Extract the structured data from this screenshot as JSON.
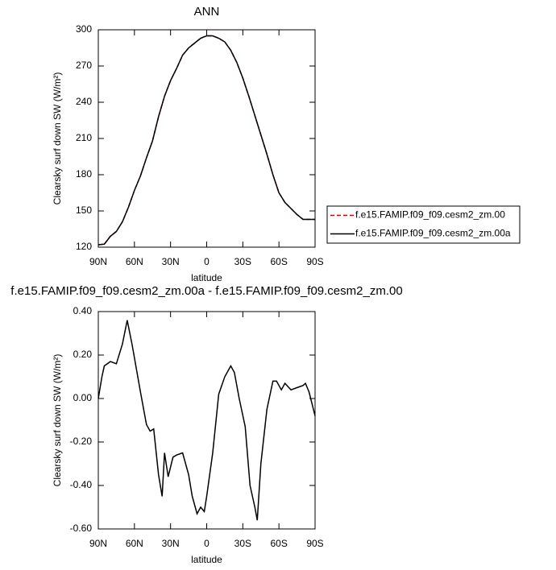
{
  "chart_data": [
    {
      "type": "line",
      "title": "ANN",
      "xlabel": "latitude",
      "ylabel": "Clearsky surf down SW (W/m²)",
      "x": [
        90,
        85,
        80,
        75,
        70,
        65,
        60,
        55,
        50,
        45,
        40,
        35,
        30,
        25,
        20,
        15,
        10,
        5,
        0,
        -5,
        -10,
        -15,
        -20,
        -25,
        -30,
        -35,
        -40,
        -45,
        -50,
        -55,
        -60,
        -65,
        -70,
        -75,
        -80,
        -85,
        -90
      ],
      "series": [
        {
          "name": "f.e15.FAMIP.f09_f09.cesm2_zm.00",
          "color": "#cc0000",
          "line_style": "dashed",
          "values": [
            122,
            122.5,
            129,
            133,
            141,
            153,
            167,
            179,
            194,
            208,
            228,
            245,
            258,
            268,
            279,
            285,
            289,
            293,
            295,
            295,
            293,
            290,
            283,
            273,
            260,
            245,
            229,
            213,
            197,
            180,
            165,
            157,
            152,
            147,
            143,
            143,
            143
          ]
        },
        {
          "name": "f.e15.FAMIP.f09_f09.cesm2_zm.00a",
          "color": "#000000",
          "line_style": "solid",
          "values": [
            122,
            122.5,
            129,
            133,
            141,
            153,
            167,
            179,
            194,
            208,
            228,
            245,
            258,
            268,
            279,
            285,
            289,
            293,
            295,
            295,
            293,
            290,
            283,
            273,
            260,
            245,
            229,
            213,
            197,
            180,
            165,
            157,
            152,
            147,
            143,
            143,
            143
          ]
        }
      ],
      "xlim": [
        90,
        -90
      ],
      "xticks": [
        {
          "value": 90,
          "label": "90N"
        },
        {
          "value": 60,
          "label": "60N"
        },
        {
          "value": 30,
          "label": "30N"
        },
        0,
        {
          "value": -30,
          "label": "30S"
        },
        {
          "value": -60,
          "label": "60S"
        },
        {
          "value": -90,
          "label": "90S"
        }
      ],
      "ylim": [
        120,
        300
      ],
      "yticks": [
        120,
        150,
        180,
        210,
        240,
        270,
        300
      ],
      "legend": "right"
    },
    {
      "type": "line",
      "title": "f.e15.FAMIP.f09_f09.cesm2_zm.00a - f.e15.FAMIP.f09_f09.cesm2_zm.00",
      "xlabel": "latitude",
      "ylabel": "Clearsky surf down SW (W/m²)",
      "x": [
        90,
        87,
        85,
        80,
        75,
        70,
        66,
        62,
        55,
        50,
        47,
        44,
        40,
        37,
        35,
        32,
        28,
        25,
        20,
        15,
        12,
        8,
        5,
        2,
        0,
        -5,
        -10,
        -15,
        -20,
        -23,
        -27,
        -32,
        -36,
        -40,
        -42,
        -45,
        -50,
        -55,
        -58,
        -62,
        -65,
        -70,
        -75,
        -80,
        -82,
        -85,
        -90
      ],
      "series": [
        {
          "name": "f.e15.FAMIP.f09_f09.cesm2_zm.00a - f.e15.FAMIP.f09_f09.cesm2_zm.00",
          "color": "#000000",
          "line_style": "solid",
          "values": [
            0.0,
            0.1,
            0.15,
            0.17,
            0.16,
            0.25,
            0.36,
            0.25,
            0.03,
            -0.12,
            -0.15,
            -0.14,
            -0.35,
            -0.45,
            -0.25,
            -0.36,
            -0.27,
            -0.26,
            -0.25,
            -0.35,
            -0.45,
            -0.53,
            -0.5,
            -0.52,
            -0.45,
            -0.25,
            0.02,
            0.1,
            0.15,
            0.12,
            0.0,
            -0.13,
            -0.4,
            -0.5,
            -0.56,
            -0.3,
            -0.05,
            0.08,
            0.08,
            0.04,
            0.07,
            0.04,
            0.05,
            0.06,
            0.07,
            0.03,
            -0.08
          ]
        }
      ],
      "xlim": [
        90,
        -90
      ],
      "xticks": [
        {
          "value": 90,
          "label": "90N"
        },
        {
          "value": 60,
          "label": "60N"
        },
        {
          "value": 30,
          "label": "30N"
        },
        0,
        {
          "value": -30,
          "label": "30S"
        },
        {
          "value": -60,
          "label": "60S"
        },
        {
          "value": -90,
          "label": "90S"
        }
      ],
      "ylim": [
        -0.6,
        0.4
      ],
      "yticks": [
        {
          "value": -0.6,
          "label": "-0.60"
        },
        {
          "value": -0.4,
          "label": "-0.40"
        },
        {
          "value": -0.2,
          "label": "-0.20"
        },
        {
          "value": 0,
          "label": "0.00"
        },
        {
          "value": 0.2,
          "label": "0.20"
        },
        {
          "value": 0.4,
          "label": "0.40"
        }
      ]
    }
  ]
}
